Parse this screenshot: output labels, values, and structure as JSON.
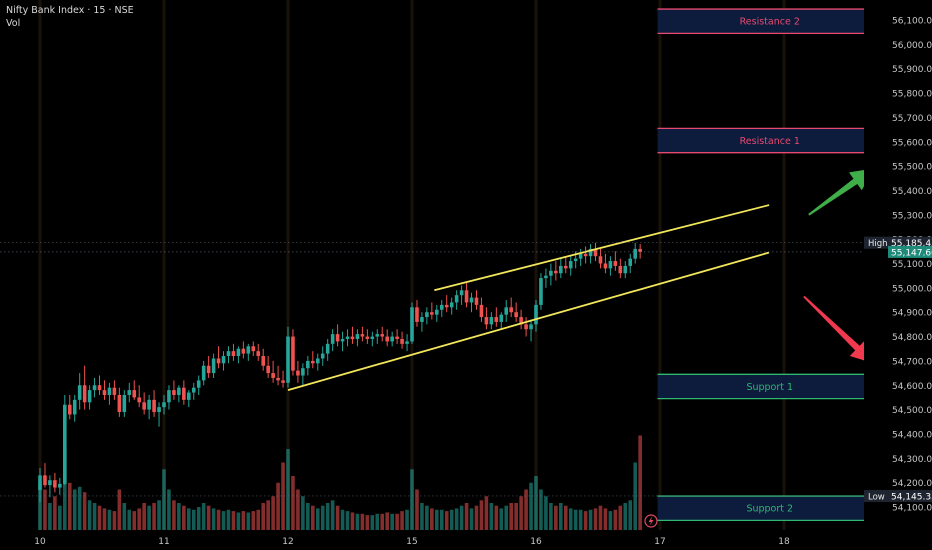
{
  "header": {
    "title": "Nifty Bank Index · 15 · NSE",
    "volume_label": "Vol"
  },
  "colors": {
    "background": "#000000",
    "up": "#26a69a",
    "down": "#ef5350",
    "channel": "#f2e65a",
    "resistance": "#e84a6f",
    "support": "#2eb872",
    "zone_fill": "#0d1b3d",
    "arrow_up": "#3fae49",
    "arrow_down": "#f0384f"
  },
  "icons": {
    "replay": "lightning-icon"
  },
  "chart_data": {
    "type": "candlestick",
    "y_axis": {
      "ylim": [
        54040,
        56160
      ],
      "tick_labels": [
        "56,100.00",
        "56,000.00",
        "55,900.00",
        "55,800.00",
        "55,700.00",
        "55,600.00",
        "55,500.00",
        "55,400.00",
        "55,300.00",
        "55,200.00",
        "55,100.00",
        "55,000.00",
        "54,900.00",
        "54,800.00",
        "54,700.00",
        "54,600.00",
        "54,500.00",
        "54,400.00",
        "54,300.00",
        "54,200.00",
        "54,100.00"
      ],
      "tick_values": [
        56100,
        56000,
        55900,
        55800,
        55700,
        55600,
        55500,
        55400,
        55300,
        55200,
        55100,
        55000,
        54900,
        54800,
        54700,
        54600,
        54500,
        54400,
        54300,
        54200,
        54100
      ]
    },
    "x_axis": {
      "tick_labels": [
        "10",
        "11",
        "12",
        "15",
        "16",
        "17",
        "18"
      ],
      "tick_index": [
        0,
        25,
        50,
        75,
        100,
        125,
        150
      ]
    },
    "markers": [
      {
        "label": "High",
        "value": "55,185.45",
        "price": 55185.45
      },
      {
        "label": "",
        "value": "55,147.60",
        "price": 55147.6
      },
      {
        "label": "Low",
        "value": "54,145.35",
        "price": 54145.35
      }
    ],
    "zones": [
      {
        "label": "Resistance 2",
        "top": 56145,
        "bottom": 56045,
        "kind": "resistance",
        "x_start": 124.5,
        "x_end": 170
      },
      {
        "label": "Resistance 1",
        "top": 55655,
        "bottom": 55555,
        "kind": "resistance",
        "x_start": 124.5,
        "x_end": 170
      },
      {
        "label": "Support 1",
        "top": 54645,
        "bottom": 54545,
        "kind": "support",
        "x_start": 124.5,
        "x_end": 170
      },
      {
        "label": "Support 2",
        "top": 54145,
        "bottom": 54045,
        "kind": "support",
        "x_start": 124.5,
        "x_end": 170
      }
    ],
    "channel": {
      "upper": [
        [
          79.5,
          54990
        ],
        [
          147,
          55340
        ]
      ],
      "lower": [
        [
          50,
          54580
        ],
        [
          147,
          55145
        ]
      ]
    },
    "arrows": [
      {
        "direction": "up",
        "from": [
          155,
          55300
        ],
        "to": [
          168,
          55490
        ]
      },
      {
        "direction": "down",
        "from": [
          154,
          54965
        ],
        "to": [
          168,
          54690
        ]
      }
    ],
    "candles": [
      {
        "o": 54170,
        "h": 54260,
        "l": 54120,
        "c": 54230,
        "v": 0.35
      },
      {
        "o": 54230,
        "h": 54280,
        "l": 54180,
        "c": 54190,
        "v": 0.3
      },
      {
        "o": 54190,
        "h": 54230,
        "l": 54140,
        "c": 54210,
        "v": 0.2
      },
      {
        "o": 54210,
        "h": 54240,
        "l": 54160,
        "c": 54180,
        "v": 0.25
      },
      {
        "o": 54180,
        "h": 54220,
        "l": 54150,
        "c": 54195,
        "v": 0.18
      },
      {
        "o": 54195,
        "h": 54560,
        "l": 54190,
        "c": 54520,
        "v": 0.62
      },
      {
        "o": 54520,
        "h": 54560,
        "l": 54460,
        "c": 54480,
        "v": 0.35
      },
      {
        "o": 54480,
        "h": 54560,
        "l": 54450,
        "c": 54540,
        "v": 0.3
      },
      {
        "o": 54540,
        "h": 54650,
        "l": 54500,
        "c": 54600,
        "v": 0.32
      },
      {
        "o": 54600,
        "h": 54680,
        "l": 54500,
        "c": 54530,
        "v": 0.28
      },
      {
        "o": 54530,
        "h": 54600,
        "l": 54500,
        "c": 54580,
        "v": 0.22
      },
      {
        "o": 54580,
        "h": 54630,
        "l": 54550,
        "c": 54600,
        "v": 0.2
      },
      {
        "o": 54600,
        "h": 54640,
        "l": 54560,
        "c": 54580,
        "v": 0.18
      },
      {
        "o": 54580,
        "h": 54620,
        "l": 54540,
        "c": 54560,
        "v": 0.16
      },
      {
        "o": 54560,
        "h": 54610,
        "l": 54520,
        "c": 54590,
        "v": 0.15
      },
      {
        "o": 54590,
        "h": 54620,
        "l": 54540,
        "c": 54560,
        "v": 0.14
      },
      {
        "o": 54560,
        "h": 54590,
        "l": 54470,
        "c": 54490,
        "v": 0.3
      },
      {
        "o": 54490,
        "h": 54580,
        "l": 54470,
        "c": 54560,
        "v": 0.2
      },
      {
        "o": 54560,
        "h": 54610,
        "l": 54530,
        "c": 54580,
        "v": 0.15
      },
      {
        "o": 54580,
        "h": 54620,
        "l": 54540,
        "c": 54550,
        "v": 0.14
      },
      {
        "o": 54550,
        "h": 54600,
        "l": 54510,
        "c": 54530,
        "v": 0.16
      },
      {
        "o": 54530,
        "h": 54570,
        "l": 54480,
        "c": 54500,
        "v": 0.2
      },
      {
        "o": 54500,
        "h": 54560,
        "l": 54460,
        "c": 54540,
        "v": 0.18
      },
      {
        "o": 54540,
        "h": 54580,
        "l": 54470,
        "c": 54490,
        "v": 0.2
      },
      {
        "o": 54490,
        "h": 54530,
        "l": 54430,
        "c": 54510,
        "v": 0.22
      },
      {
        "o": 54510,
        "h": 54560,
        "l": 54480,
        "c": 54530,
        "v": 0.45
      },
      {
        "o": 54530,
        "h": 54600,
        "l": 54500,
        "c": 54580,
        "v": 0.3
      },
      {
        "o": 54580,
        "h": 54620,
        "l": 54540,
        "c": 54560,
        "v": 0.22
      },
      {
        "o": 54560,
        "h": 54600,
        "l": 54530,
        "c": 54590,
        "v": 0.2
      },
      {
        "o": 54590,
        "h": 54620,
        "l": 54520,
        "c": 54540,
        "v": 0.18
      },
      {
        "o": 54540,
        "h": 54580,
        "l": 54510,
        "c": 54570,
        "v": 0.16
      },
      {
        "o": 54570,
        "h": 54610,
        "l": 54540,
        "c": 54590,
        "v": 0.15
      },
      {
        "o": 54590,
        "h": 54640,
        "l": 54560,
        "c": 54620,
        "v": 0.17
      },
      {
        "o": 54620,
        "h": 54700,
        "l": 54600,
        "c": 54680,
        "v": 0.2
      },
      {
        "o": 54680,
        "h": 54720,
        "l": 54630,
        "c": 54650,
        "v": 0.18
      },
      {
        "o": 54650,
        "h": 54730,
        "l": 54630,
        "c": 54710,
        "v": 0.16
      },
      {
        "o": 54710,
        "h": 54760,
        "l": 54670,
        "c": 54690,
        "v": 0.15
      },
      {
        "o": 54690,
        "h": 54740,
        "l": 54660,
        "c": 54720,
        "v": 0.14
      },
      {
        "o": 54720,
        "h": 54760,
        "l": 54690,
        "c": 54740,
        "v": 0.15
      },
      {
        "o": 54740,
        "h": 54770,
        "l": 54700,
        "c": 54720,
        "v": 0.14
      },
      {
        "o": 54720,
        "h": 54760,
        "l": 54690,
        "c": 54750,
        "v": 0.13
      },
      {
        "o": 54750,
        "h": 54780,
        "l": 54710,
        "c": 54730,
        "v": 0.14
      },
      {
        "o": 54730,
        "h": 54770,
        "l": 54700,
        "c": 54760,
        "v": 0.13
      },
      {
        "o": 54760,
        "h": 54780,
        "l": 54720,
        "c": 54740,
        "v": 0.14
      },
      {
        "o": 54740,
        "h": 54770,
        "l": 54700,
        "c": 54720,
        "v": 0.15
      },
      {
        "o": 54720,
        "h": 54750,
        "l": 54660,
        "c": 54680,
        "v": 0.2
      },
      {
        "o": 54680,
        "h": 54720,
        "l": 54630,
        "c": 54650,
        "v": 0.22
      },
      {
        "o": 54650,
        "h": 54700,
        "l": 54610,
        "c": 54630,
        "v": 0.25
      },
      {
        "o": 54630,
        "h": 54680,
        "l": 54600,
        "c": 54620,
        "v": 0.35
      },
      {
        "o": 54620,
        "h": 54660,
        "l": 54590,
        "c": 54610,
        "v": 0.5
      },
      {
        "o": 54610,
        "h": 54840,
        "l": 54590,
        "c": 54800,
        "v": 0.6
      },
      {
        "o": 54800,
        "h": 54830,
        "l": 54640,
        "c": 54660,
        "v": 0.4
      },
      {
        "o": 54660,
        "h": 54700,
        "l": 54610,
        "c": 54640,
        "v": 0.3
      },
      {
        "o": 54640,
        "h": 54690,
        "l": 54600,
        "c": 54670,
        "v": 0.25
      },
      {
        "o": 54670,
        "h": 54720,
        "l": 54640,
        "c": 54700,
        "v": 0.2
      },
      {
        "o": 54700,
        "h": 54740,
        "l": 54670,
        "c": 54690,
        "v": 0.18
      },
      {
        "o": 54690,
        "h": 54730,
        "l": 54660,
        "c": 54710,
        "v": 0.16
      },
      {
        "o": 54710,
        "h": 54760,
        "l": 54680,
        "c": 54730,
        "v": 0.18
      },
      {
        "o": 54730,
        "h": 54790,
        "l": 54700,
        "c": 54770,
        "v": 0.2
      },
      {
        "o": 54770,
        "h": 54830,
        "l": 54740,
        "c": 54810,
        "v": 0.22
      },
      {
        "o": 54810,
        "h": 54850,
        "l": 54760,
        "c": 54780,
        "v": 0.18
      },
      {
        "o": 54780,
        "h": 54820,
        "l": 54740,
        "c": 54790,
        "v": 0.15
      },
      {
        "o": 54790,
        "h": 54830,
        "l": 54760,
        "c": 54800,
        "v": 0.14
      },
      {
        "o": 54800,
        "h": 54840,
        "l": 54770,
        "c": 54790,
        "v": 0.13
      },
      {
        "o": 54790,
        "h": 54830,
        "l": 54760,
        "c": 54810,
        "v": 0.12
      },
      {
        "o": 54810,
        "h": 54840,
        "l": 54780,
        "c": 54800,
        "v": 0.12
      },
      {
        "o": 54800,
        "h": 54830,
        "l": 54770,
        "c": 54790,
        "v": 0.11
      },
      {
        "o": 54790,
        "h": 54820,
        "l": 54760,
        "c": 54800,
        "v": 0.11
      },
      {
        "o": 54800,
        "h": 54830,
        "l": 54770,
        "c": 54810,
        "v": 0.12
      },
      {
        "o": 54810,
        "h": 54840,
        "l": 54780,
        "c": 54800,
        "v": 0.12
      },
      {
        "o": 54800,
        "h": 54830,
        "l": 54760,
        "c": 54780,
        "v": 0.13
      },
      {
        "o": 54780,
        "h": 54820,
        "l": 54760,
        "c": 54800,
        "v": 0.12
      },
      {
        "o": 54800,
        "h": 54830,
        "l": 54770,
        "c": 54790,
        "v": 0.12
      },
      {
        "o": 54790,
        "h": 54820,
        "l": 54750,
        "c": 54770,
        "v": 0.14
      },
      {
        "o": 54770,
        "h": 54810,
        "l": 54740,
        "c": 54780,
        "v": 0.15
      },
      {
        "o": 54780,
        "h": 54940,
        "l": 54770,
        "c": 54920,
        "v": 0.45
      },
      {
        "o": 54920,
        "h": 54950,
        "l": 54840,
        "c": 54860,
        "v": 0.3
      },
      {
        "o": 54860,
        "h": 54900,
        "l": 54820,
        "c": 54880,
        "v": 0.2
      },
      {
        "o": 54880,
        "h": 54920,
        "l": 54850,
        "c": 54900,
        "v": 0.18
      },
      {
        "o": 54900,
        "h": 54940,
        "l": 54870,
        "c": 54890,
        "v": 0.16
      },
      {
        "o": 54890,
        "h": 54930,
        "l": 54860,
        "c": 54910,
        "v": 0.15
      },
      {
        "o": 54910,
        "h": 54950,
        "l": 54880,
        "c": 54930,
        "v": 0.15
      },
      {
        "o": 54930,
        "h": 54970,
        "l": 54900,
        "c": 54920,
        "v": 0.14
      },
      {
        "o": 54920,
        "h": 54960,
        "l": 54890,
        "c": 54940,
        "v": 0.15
      },
      {
        "o": 54940,
        "h": 54990,
        "l": 54910,
        "c": 54970,
        "v": 0.16
      },
      {
        "o": 54970,
        "h": 55010,
        "l": 54930,
        "c": 54990,
        "v": 0.18
      },
      {
        "o": 54990,
        "h": 55020,
        "l": 54920,
        "c": 54940,
        "v": 0.2
      },
      {
        "o": 54940,
        "h": 54980,
        "l": 54900,
        "c": 54960,
        "v": 0.16
      },
      {
        "o": 54960,
        "h": 54990,
        "l": 54910,
        "c": 54930,
        "v": 0.18
      },
      {
        "o": 54930,
        "h": 54960,
        "l": 54860,
        "c": 54880,
        "v": 0.22
      },
      {
        "o": 54880,
        "h": 54920,
        "l": 54830,
        "c": 54850,
        "v": 0.25
      },
      {
        "o": 54850,
        "h": 54900,
        "l": 54830,
        "c": 54880,
        "v": 0.2
      },
      {
        "o": 54880,
        "h": 54920,
        "l": 54840,
        "c": 54860,
        "v": 0.18
      },
      {
        "o": 54860,
        "h": 54900,
        "l": 54830,
        "c": 54890,
        "v": 0.16
      },
      {
        "o": 54890,
        "h": 54950,
        "l": 54860,
        "c": 54920,
        "v": 0.18
      },
      {
        "o": 54920,
        "h": 54960,
        "l": 54880,
        "c": 54900,
        "v": 0.2
      },
      {
        "o": 54900,
        "h": 54940,
        "l": 54860,
        "c": 54880,
        "v": 0.2
      },
      {
        "o": 54880,
        "h": 54910,
        "l": 54830,
        "c": 54850,
        "v": 0.25
      },
      {
        "o": 54850,
        "h": 54880,
        "l": 54800,
        "c": 54830,
        "v": 0.3
      },
      {
        "o": 54830,
        "h": 54870,
        "l": 54780,
        "c": 54850,
        "v": 0.35
      },
      {
        "o": 54850,
        "h": 54950,
        "l": 54820,
        "c": 54930,
        "v": 0.4
      },
      {
        "o": 54930,
        "h": 55060,
        "l": 54910,
        "c": 55040,
        "v": 0.3
      },
      {
        "o": 55040,
        "h": 55080,
        "l": 55000,
        "c": 55050,
        "v": 0.25
      },
      {
        "o": 55050,
        "h": 55100,
        "l": 55010,
        "c": 55070,
        "v": 0.2
      },
      {
        "o": 55070,
        "h": 55110,
        "l": 55030,
        "c": 55060,
        "v": 0.18
      },
      {
        "o": 55060,
        "h": 55120,
        "l": 55040,
        "c": 55090,
        "v": 0.2
      },
      {
        "o": 55090,
        "h": 55130,
        "l": 55060,
        "c": 55080,
        "v": 0.18
      },
      {
        "o": 55080,
        "h": 55130,
        "l": 55050,
        "c": 55110,
        "v": 0.16
      },
      {
        "o": 55110,
        "h": 55150,
        "l": 55080,
        "c": 55120,
        "v": 0.15
      },
      {
        "o": 55120,
        "h": 55160,
        "l": 55090,
        "c": 55140,
        "v": 0.15
      },
      {
        "o": 55140,
        "h": 55170,
        "l": 55100,
        "c": 55130,
        "v": 0.14
      },
      {
        "o": 55130,
        "h": 55180,
        "l": 55100,
        "c": 55160,
        "v": 0.15
      },
      {
        "o": 55160,
        "h": 55185,
        "l": 55110,
        "c": 55130,
        "v": 0.16
      },
      {
        "o": 55130,
        "h": 55160,
        "l": 55080,
        "c": 55100,
        "v": 0.18
      },
      {
        "o": 55100,
        "h": 55140,
        "l": 55060,
        "c": 55080,
        "v": 0.16
      },
      {
        "o": 55080,
        "h": 55130,
        "l": 55050,
        "c": 55110,
        "v": 0.14
      },
      {
        "o": 55110,
        "h": 55150,
        "l": 55070,
        "c": 55090,
        "v": 0.15
      },
      {
        "o": 55090,
        "h": 55120,
        "l": 55040,
        "c": 55060,
        "v": 0.18
      },
      {
        "o": 55060,
        "h": 55110,
        "l": 55040,
        "c": 55090,
        "v": 0.2
      },
      {
        "o": 55090,
        "h": 55140,
        "l": 55060,
        "c": 55120,
        "v": 0.22
      },
      {
        "o": 55120,
        "h": 55185,
        "l": 55100,
        "c": 55160,
        "v": 0.5
      },
      {
        "o": 55160,
        "h": 55180,
        "l": 55120,
        "c": 55147.6,
        "v": 0.7
      }
    ],
    "grid": false,
    "legend": "none"
  }
}
